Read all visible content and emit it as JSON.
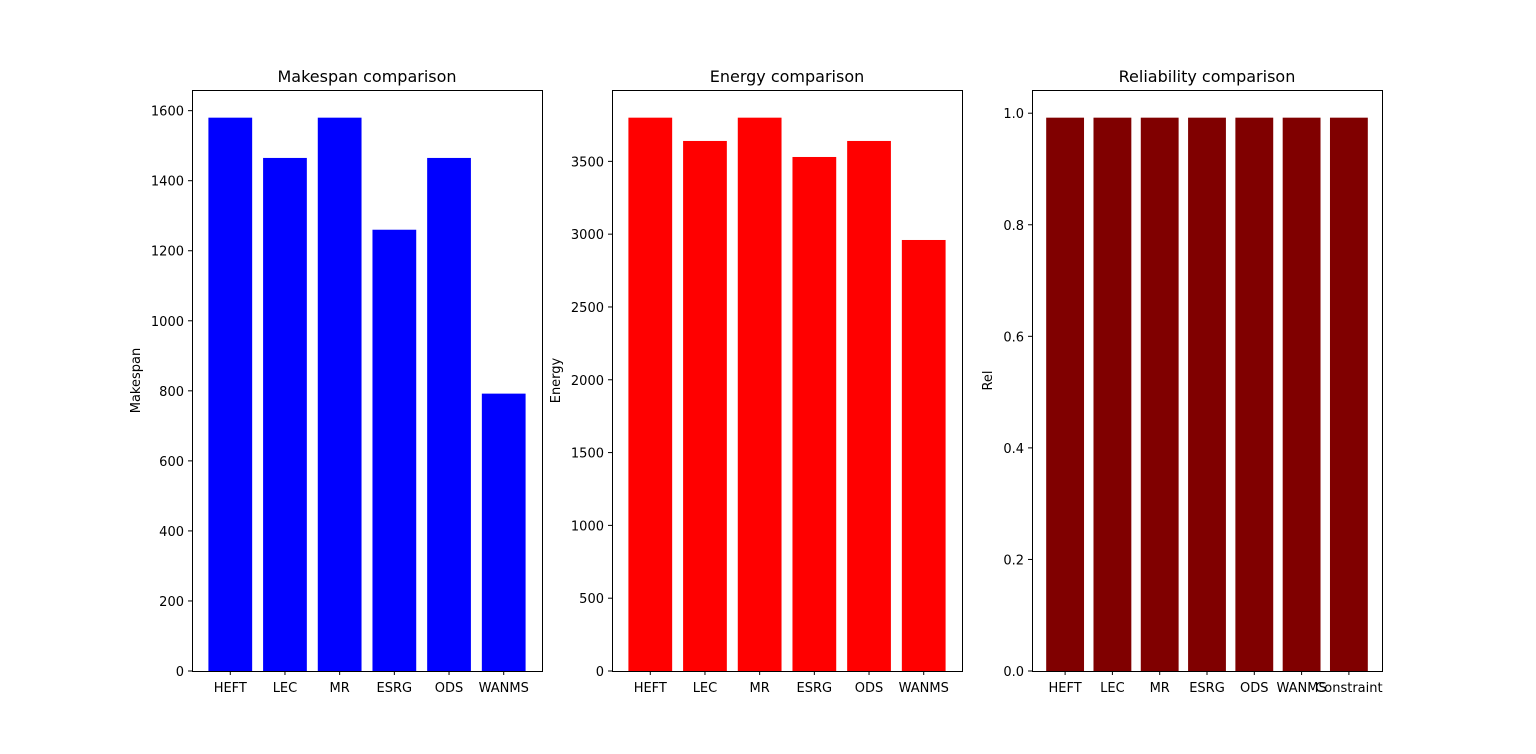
{
  "chart_data": [
    {
      "type": "bar",
      "title": "Makespan comparison",
      "xlabel": "",
      "ylabel": "Makespan",
      "categories": [
        "HEFT",
        "LEC",
        "MR",
        "ESRG",
        "ODS",
        "WANMS"
      ],
      "values": [
        1580,
        1465,
        1580,
        1260,
        1465,
        792
      ],
      "ylim": [
        0,
        1659
      ],
      "yticks": [
        0,
        200,
        400,
        600,
        800,
        1000,
        1200,
        1400,
        1600
      ],
      "color": "#0000ff",
      "grid": false
    },
    {
      "type": "bar",
      "title": "Energy comparison",
      "xlabel": "",
      "ylabel": "Energy",
      "categories": [
        "HEFT",
        "LEC",
        "MR",
        "ESRG",
        "ODS",
        "WANMS"
      ],
      "values": [
        3800,
        3640,
        3800,
        3530,
        3640,
        2960
      ],
      "ylim": [
        0,
        3990
      ],
      "yticks": [
        0,
        500,
        1000,
        1500,
        2000,
        2500,
        3000,
        3500
      ],
      "color": "#ff0000",
      "grid": false
    },
    {
      "type": "bar",
      "title": "Reliability comparison",
      "xlabel": "",
      "ylabel": "Rel",
      "categories": [
        "HEFT",
        "LEC",
        "MR",
        "ESRG",
        "ODS",
        "WANMS",
        "Constraint"
      ],
      "values": [
        0.992,
        0.992,
        0.992,
        0.992,
        0.992,
        0.992,
        0.992
      ],
      "ylim": [
        0,
        1.0416
      ],
      "yticks": [
        0.0,
        0.2,
        0.4,
        0.6,
        0.8,
        1.0
      ],
      "color": "#800000",
      "grid": false
    }
  ]
}
